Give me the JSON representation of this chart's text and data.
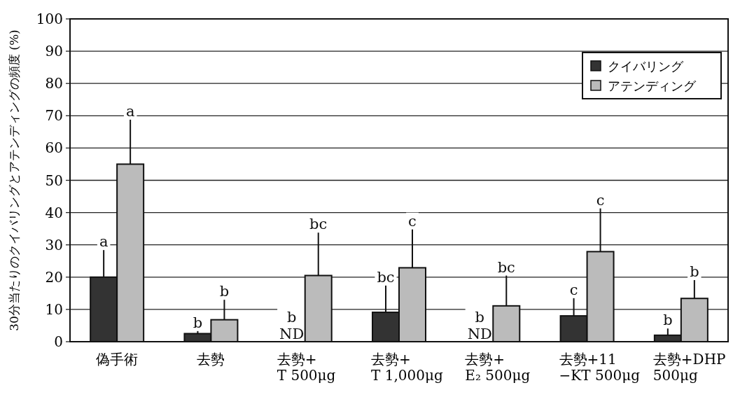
{
  "chart_data": {
    "type": "bar",
    "ylabel": "30分当たりのクイバリングとアテンディングの頻度 (%)",
    "categories": [
      "偽手術",
      "去勢",
      "去勢+\nT 500μg",
      "去勢+\nT 1,000μg",
      "去勢+\nE₂ 500μg",
      "去勢+11\n−KT 500μg",
      "去勢+DHP\n500μg"
    ],
    "series": [
      {
        "name": "クイバリング",
        "color": "#333333",
        "values": [
          20,
          2.5,
          null,
          9.1,
          null,
          8,
          2
        ],
        "errors": [
          [
            20,
            28.6
          ],
          [
            2.5,
            3.5
          ],
          null,
          [
            9.1,
            17.6
          ],
          null,
          [
            8,
            13.7
          ],
          [
            2,
            4.3
          ]
        ],
        "value_labels": [
          "a",
          "b",
          "b\nND",
          "bc",
          "b\nND",
          "c",
          "b"
        ]
      },
      {
        "name": "アテンディング",
        "color": "#bbbbbb",
        "values": [
          55,
          6.8,
          20.5,
          22.9,
          11.1,
          27.9,
          13.4
        ],
        "errors": [
          [
            55,
            69
          ],
          [
            6.8,
            13.2
          ],
          [
            20.5,
            34
          ],
          [
            22.9,
            35
          ],
          [
            11.1,
            20.7
          ],
          [
            27.9,
            41.5
          ],
          [
            13.4,
            19.3
          ]
        ],
        "value_labels": [
          "a",
          "b",
          "bc",
          "c",
          "bc",
          "c",
          "b"
        ]
      }
    ],
    "ylim": [
      0,
      100
    ],
    "yticks": [
      0,
      10,
      20,
      30,
      40,
      50,
      60,
      70,
      80,
      90,
      100
    ],
    "grid": "y",
    "legend": "top right"
  }
}
